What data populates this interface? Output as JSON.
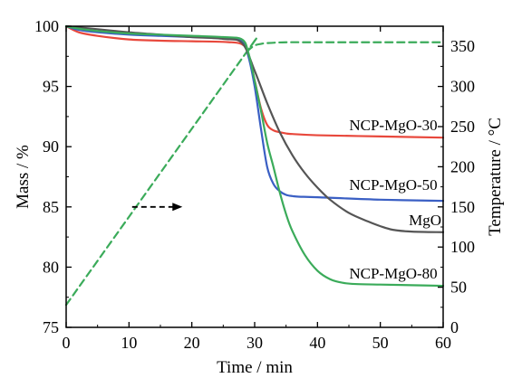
{
  "chart_data": {
    "type": "line",
    "xlabel": "Time / min",
    "ylabel_left": "Mass / %",
    "ylabel_right": "Temperature / °C",
    "xlim": [
      0,
      60
    ],
    "ylim_left": [
      75,
      100
    ],
    "ylim_right": [
      0,
      375
    ],
    "xticks": [
      0,
      10,
      20,
      30,
      40,
      50,
      60
    ],
    "yticks_left": [
      75,
      80,
      85,
      90,
      95,
      100
    ],
    "yticks_right": [
      0,
      50,
      100,
      150,
      200,
      250,
      300,
      350
    ],
    "grid": false,
    "series": [
      {
        "name": "NCP-MgO-30",
        "axis": "left",
        "color": "#e8483c",
        "x": [
          0,
          2,
          5,
          10,
          15,
          20,
          25,
          28,
          29,
          30,
          31,
          32,
          33,
          34,
          35,
          36,
          40,
          50,
          60
        ],
        "y": [
          100,
          99.5,
          99.2,
          98.9,
          98.8,
          98.75,
          98.7,
          98.5,
          97.6,
          95.5,
          93.2,
          91.8,
          91.35,
          91.2,
          91.1,
          91.05,
          90.95,
          90.85,
          90.75
        ]
      },
      {
        "name": "NCP-MgO-50",
        "axis": "left",
        "color": "#3a5fc4",
        "x": [
          0,
          2,
          5,
          10,
          15,
          20,
          25,
          28,
          29,
          30,
          31,
          32,
          33,
          34,
          35,
          36,
          37,
          40,
          50,
          60
        ],
        "y": [
          100,
          99.7,
          99.5,
          99.3,
          99.2,
          99.1,
          99.0,
          98.8,
          97.5,
          95.0,
          91.5,
          88.3,
          86.9,
          86.3,
          86.0,
          85.9,
          85.85,
          85.8,
          85.6,
          85.5
        ]
      },
      {
        "name": "MgO",
        "axis": "left",
        "color": "#555555",
        "x": [
          0,
          2,
          5,
          10,
          15,
          20,
          25,
          28,
          30,
          32,
          34,
          36,
          38,
          40,
          42,
          45,
          48,
          50,
          52,
          55,
          60
        ],
        "y": [
          100,
          99.9,
          99.75,
          99.5,
          99.3,
          99.1,
          98.95,
          98.6,
          96.3,
          93.6,
          91.2,
          89.3,
          87.8,
          86.6,
          85.6,
          84.5,
          83.8,
          83.4,
          83.1,
          82.95,
          82.9
        ]
      },
      {
        "name": "NCP-MgO-80",
        "axis": "left",
        "color": "#3bab5a",
        "x": [
          0,
          2,
          5,
          10,
          15,
          20,
          25,
          28,
          29,
          30,
          31,
          32,
          33,
          34,
          35,
          36,
          38,
          40,
          42,
          44,
          46,
          50,
          55,
          60
        ],
        "y": [
          100,
          99.8,
          99.6,
          99.4,
          99.3,
          99.2,
          99.1,
          98.9,
          97.8,
          95.5,
          93.0,
          90.3,
          88.3,
          86.2,
          84.4,
          83.0,
          81.0,
          79.7,
          79.0,
          78.7,
          78.6,
          78.55,
          78.5,
          78.45
        ]
      },
      {
        "name": "",
        "axis": "right",
        "style": "dashed",
        "color": "#3bab5a",
        "x": [
          0,
          28,
          29,
          30,
          31,
          32,
          35,
          40,
          50,
          60
        ],
        "y": [
          28,
          335,
          345,
          351,
          353,
          354,
          355,
          355,
          355,
          355
        ]
      }
    ],
    "annotations": [
      {
        "text": "NCP-MgO-30",
        "series": "NCP-MgO-30"
      },
      {
        "text": "NCP-MgO-50",
        "series": "NCP-MgO-50"
      },
      {
        "text": "MgO",
        "series": "MgO"
      },
      {
        "text": "NCP-MgO-80",
        "series": "NCP-MgO-80"
      }
    ],
    "arrow": {
      "direction": "right",
      "color": "#000000",
      "style": "dashed",
      "x_from": 10.5,
      "x_to": 18.5,
      "y": 85
    }
  }
}
